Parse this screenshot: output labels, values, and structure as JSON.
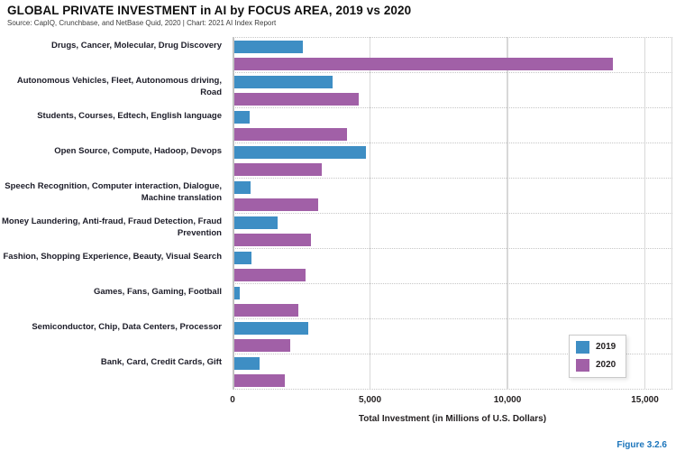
{
  "header": {
    "title": "GLOBAL PRIVATE INVESTMENT in AI by FOCUS AREA, 2019 vs 2020",
    "source": "Source: CapIQ, Crunchbase, and NetBase Quid, 2020 | Chart: 2021 AI Index Report"
  },
  "footer": {
    "figure_label": "Figure 3.2.6"
  },
  "colors": {
    "bar_2019": "#3e8ec4",
    "bar_2020": "#a160a7",
    "figure_label_blue": "#1b75bb"
  },
  "chart_data": {
    "type": "bar",
    "orientation": "horizontal",
    "title": "GLOBAL PRIVATE INVESTMENT in AI by FOCUS AREA, 2019 vs 2020",
    "xlabel": "Total Investment (in Millions of U.S. Dollars)",
    "xlim": [
      0,
      16000
    ],
    "xticks": [
      0,
      5000,
      10000,
      15000
    ],
    "xtick_labels": [
      "0",
      "5,000",
      "10,000",
      "15,000"
    ],
    "grid": true,
    "legend_position": "lower right",
    "categories": [
      "Drugs, Cancer, Molecular, Drug Discovery",
      "Autonomous Vehicles, Fleet, Autonomous driving, Road",
      "Students, Courses, Edtech, English language",
      "Open Source, Compute, Hadoop, Devops",
      "Speech Recognition, Computer interaction, Dialogue, Machine translation",
      "Money Laundering, Anti-fraud, Fraud Detection, Fraud Prevention",
      "Fashion, Shopping Experience, Beauty, Visual Search",
      "Games, Fans, Gaming, Football",
      "Semiconductor, Chip, Data Centers, Processor",
      "Bank, Card, Credit Cards, Gift"
    ],
    "series": [
      {
        "name": "2019",
        "color": "#3e8ec4",
        "values": [
          2500,
          3600,
          570,
          4800,
          600,
          1600,
          640,
          210,
          2700,
          930
        ]
      },
      {
        "name": "2020",
        "color": "#a160a7",
        "values": [
          13800,
          4550,
          4100,
          3200,
          3050,
          2800,
          2600,
          2330,
          2050,
          1850
        ]
      }
    ]
  }
}
